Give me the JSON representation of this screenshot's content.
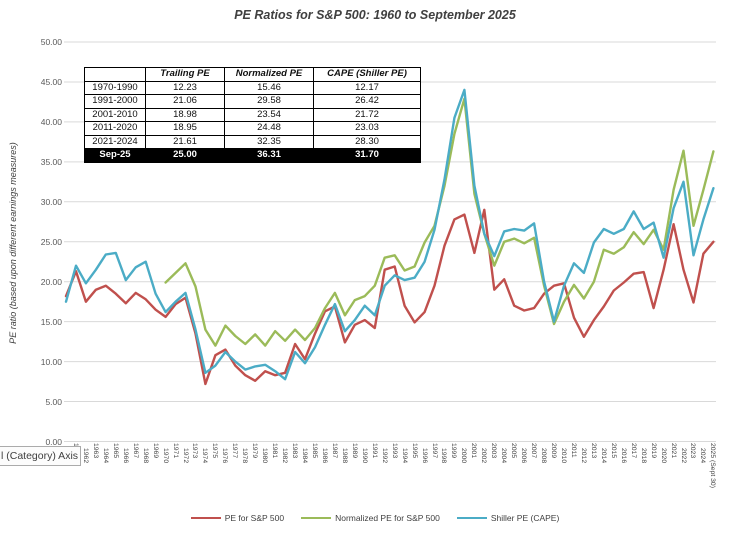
{
  "chart": {
    "title": "PE Ratios for S&P 500: 1960 to September 2025",
    "y_axis_title": "PE ratio (based upon different earnings measures)",
    "category_axis_box": "l (Category) Axis",
    "colors": {
      "trailing": "#C0504D",
      "normalized": "#9BBB59",
      "cape": "#4BACC6",
      "gridline": "#d9d9d9"
    }
  },
  "summary_table": {
    "headers": [
      "",
      "Trailing PE",
      "Normalized PE",
      "CAPE (Shiller PE)"
    ],
    "rows": [
      {
        "label": "1970-1990",
        "trailing": "12.23",
        "normalized": "15.46",
        "cape": "12.17",
        "highlight": false
      },
      {
        "label": "1991-2000",
        "trailing": "21.06",
        "normalized": "29.58",
        "cape": "26.42",
        "highlight": false
      },
      {
        "label": "2001-2010",
        "trailing": "18.98",
        "normalized": "23.54",
        "cape": "21.72",
        "highlight": false
      },
      {
        "label": "2011-2020",
        "trailing": "18.95",
        "normalized": "24.48",
        "cape": "23.03",
        "highlight": false
      },
      {
        "label": "2021-2024",
        "trailing": "21.61",
        "normalized": "32.35",
        "cape": "28.30",
        "highlight": false
      },
      {
        "label": "Sep-25",
        "trailing": "25.00",
        "normalized": "36.31",
        "cape": "31.70",
        "highlight": true
      }
    ]
  },
  "chart_data": {
    "type": "line",
    "title": "PE Ratios for S&P 500: 1960 to September 2025",
    "xlabel": "",
    "ylabel": "PE ratio (based upon different earnings measures)",
    "ylim": [
      0,
      50
    ],
    "ytick_step": 5,
    "grid": true,
    "legend_position": "bottom",
    "x_years": [
      1960,
      1961,
      1962,
      1963,
      1964,
      1965,
      1966,
      1967,
      1968,
      1969,
      1970,
      1971,
      1972,
      1973,
      1974,
      1975,
      1976,
      1977,
      1978,
      1979,
      1980,
      1981,
      1982,
      1983,
      1984,
      1985,
      1986,
      1987,
      1988,
      1989,
      1990,
      1991,
      1992,
      1993,
      1994,
      1995,
      1996,
      1997,
      1998,
      1999,
      2000,
      2001,
      2002,
      2003,
      2004,
      2005,
      2006,
      2007,
      2008,
      2009,
      2010,
      2011,
      2012,
      2013,
      2014,
      2015,
      2016,
      2017,
      2018,
      2019,
      2020,
      2021,
      2022,
      2023,
      2024,
      2025
    ],
    "last_x_label": "2025 (Sept 30)",
    "series": [
      {
        "name": "PE for S&P 500",
        "color": "#C0504D",
        "values": [
          18.2,
          21.3,
          17.5,
          19.0,
          19.5,
          18.5,
          17.3,
          18.6,
          17.8,
          16.5,
          15.6,
          17.2,
          18.0,
          13.5,
          7.2,
          10.8,
          11.5,
          9.5,
          8.3,
          7.6,
          8.8,
          8.3,
          8.6,
          12.2,
          10.3,
          13.5,
          16.3,
          16.9,
          12.4,
          14.6,
          15.2,
          14.2,
          21.5,
          21.9,
          17.0,
          14.9,
          16.2,
          19.5,
          24.5,
          27.8,
          28.4,
          23.6,
          29.0,
          19.0,
          20.3,
          17.0,
          16.4,
          16.7,
          18.5,
          19.5,
          19.8,
          15.5,
          13.1,
          15.2,
          16.9,
          18.9,
          19.9,
          21.0,
          21.2,
          16.7,
          21.5,
          27.2,
          21.5,
          17.4,
          23.5,
          25.0
        ]
      },
      {
        "name": "Normalized PE for S&P 500",
        "color": "#9BBB59",
        "values": [
          null,
          null,
          null,
          null,
          null,
          null,
          null,
          null,
          null,
          null,
          19.9,
          21.1,
          22.3,
          19.4,
          14.0,
          12.0,
          14.5,
          13.2,
          12.2,
          13.4,
          12.0,
          13.8,
          12.6,
          14.0,
          12.7,
          14.2,
          16.7,
          18.6,
          15.8,
          17.7,
          18.2,
          19.5,
          23.0,
          23.3,
          21.4,
          21.9,
          24.9,
          27.0,
          32.0,
          38.5,
          42.9,
          31.0,
          26.0,
          22.0,
          25.0,
          25.4,
          24.8,
          25.5,
          19.5,
          14.7,
          17.5,
          19.6,
          17.9,
          20.0,
          24.0,
          23.5,
          24.3,
          26.2,
          24.7,
          26.5,
          24.0,
          31.5,
          36.4,
          27.0,
          31.5,
          36.31
        ]
      },
      {
        "name": "Shiller PE (CAPE)",
        "color": "#4BACC6",
        "values": [
          17.5,
          22.0,
          19.8,
          21.5,
          23.4,
          23.6,
          20.2,
          21.8,
          22.5,
          18.5,
          16.2,
          17.5,
          18.6,
          14.0,
          8.6,
          9.5,
          11.2,
          10.0,
          9.0,
          9.4,
          9.6,
          8.8,
          7.8,
          11.2,
          9.8,
          11.8,
          14.6,
          17.2,
          13.8,
          15.2,
          17.0,
          15.8,
          19.5,
          20.8,
          20.2,
          20.5,
          22.5,
          26.5,
          32.8,
          40.5,
          44.0,
          32.0,
          26.0,
          23.2,
          26.3,
          26.6,
          26.4,
          27.3,
          20.0,
          15.0,
          19.5,
          22.3,
          21.1,
          24.9,
          26.6,
          26.0,
          26.6,
          28.8,
          26.6,
          27.4,
          23.0,
          29.2,
          32.5,
          23.3,
          27.8,
          31.7
        ]
      }
    ],
    "embedded_table": {
      "headers": [
        "",
        "Trailing PE",
        "Normalized PE",
        "CAPE (Shiller PE)"
      ],
      "rows": [
        [
          "1970-1990",
          "12.23",
          "15.46",
          "12.17"
        ],
        [
          "1991-2000",
          "21.06",
          "29.58",
          "26.42"
        ],
        [
          "2001-2010",
          "18.98",
          "23.54",
          "21.72"
        ],
        [
          "2011-2020",
          "18.95",
          "24.48",
          "23.03"
        ],
        [
          "2021-2024",
          "21.61",
          "32.35",
          "28.30"
        ],
        [
          "Sep-25",
          "25.00",
          "36.31",
          "31.70"
        ]
      ]
    }
  }
}
